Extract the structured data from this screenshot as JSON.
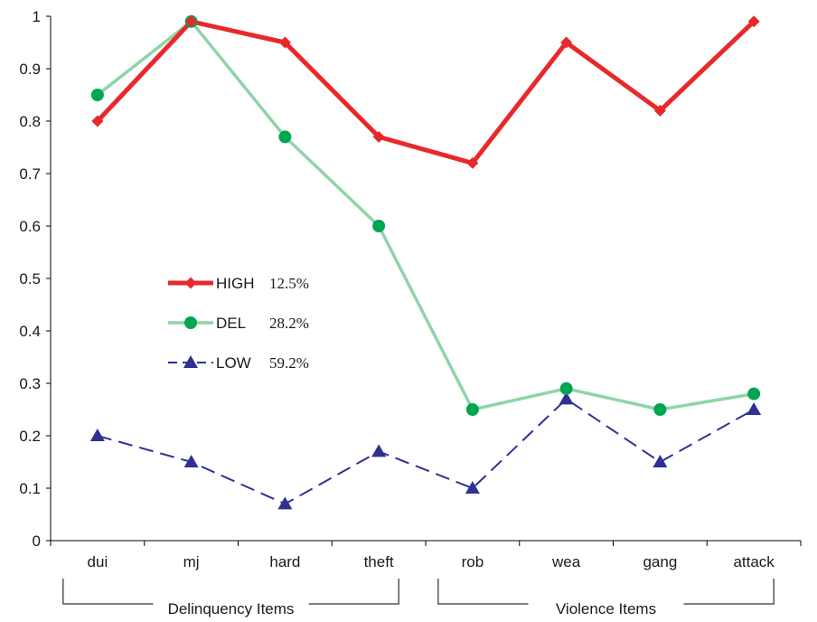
{
  "chart_data": {
    "type": "line",
    "categories": [
      "dui",
      "mj",
      "hard",
      "theft",
      "rob",
      "wea",
      "gang",
      "attack"
    ],
    "ylim": [
      0,
      1
    ],
    "yticks": [
      "0",
      "0.1",
      "0.2",
      "0.3",
      "0.4",
      "0.5",
      "0.6",
      "0.7",
      "0.8",
      "0.9",
      "1"
    ],
    "grid": false,
    "legend_position": "center-left",
    "series": [
      {
        "name": "HIGH",
        "percent": "12.5%",
        "color": "#e8282b",
        "marker": "diamond",
        "line_style": "solid-thick",
        "values": [
          0.8,
          0.99,
          0.95,
          0.77,
          0.72,
          0.95,
          0.82,
          0.99
        ]
      },
      {
        "name": "DEL",
        "percent": "28.2%",
        "color": "#00a651",
        "line_color": "#8fd4a8",
        "marker": "circle",
        "line_style": "solid",
        "values": [
          0.85,
          0.99,
          0.77,
          0.6,
          0.25,
          0.29,
          0.25,
          0.28
        ]
      },
      {
        "name": "LOW",
        "percent": "59.2%",
        "color": "#2e3192",
        "marker": "triangle",
        "line_style": "dashed",
        "values": [
          0.2,
          0.15,
          0.07,
          0.17,
          0.1,
          0.27,
          0.15,
          0.25
        ]
      }
    ],
    "groups": [
      {
        "label": "Delinquency Items",
        "from": 0,
        "to": 3
      },
      {
        "label": "Violence Items",
        "from": 4,
        "to": 7
      }
    ]
  }
}
